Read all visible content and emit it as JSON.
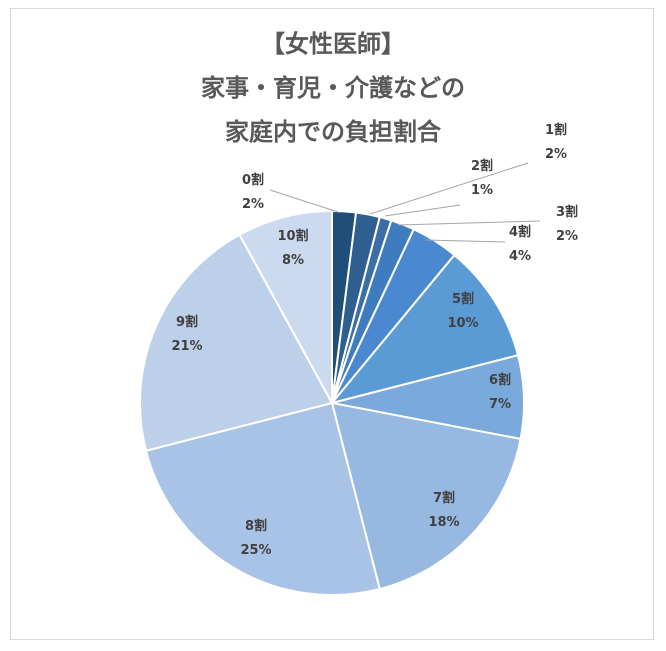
{
  "chart_data": {
    "type": "pie",
    "title_lines": [
      "【女性医師】",
      "家事・育児・介護などの",
      "家庭内での負担割合"
    ],
    "categories": [
      "0割",
      "1割",
      "2割",
      "3割",
      "4割",
      "5割",
      "6割",
      "7割",
      "8割",
      "9割",
      "10割"
    ],
    "values": [
      2,
      2,
      1,
      2,
      4,
      10,
      7,
      18,
      25,
      21,
      8
    ],
    "value_labels": [
      "2%",
      "2%",
      "1%",
      "2%",
      "4%",
      "10%",
      "7%",
      "18%",
      "25%",
      "21%",
      "8%"
    ],
    "colors": [
      "#1f4e79",
      "#2e5f8f",
      "#3a6ea5",
      "#3f7cbf",
      "#4a89cf",
      "#5b9bd5",
      "#7aa9db",
      "#97b8e0",
      "#a9c3e6",
      "#bcd0ea",
      "#ccdaf0"
    ],
    "start_angle": "12 o'clock",
    "direction": "clockwise",
    "legend": "none"
  }
}
